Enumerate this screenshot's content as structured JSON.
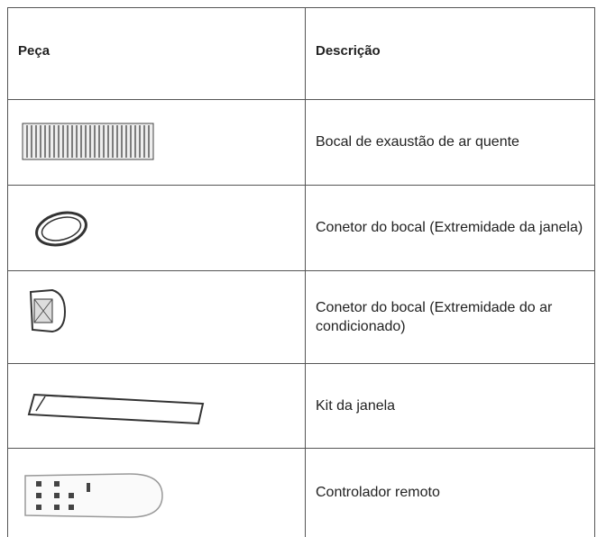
{
  "table": {
    "header": [
      "Peça",
      "Descrição"
    ],
    "rows": [
      {
        "description": "Bocal de exaustão de ar quente"
      },
      {
        "description": "Conetor do bocal (Extremidade da janela)"
      },
      {
        "description": "Conetor do bocal (Extremidade do ar condicionado)"
      },
      {
        "description": "Kit da janela"
      },
      {
        "description": "Controlador remoto"
      }
    ]
  }
}
